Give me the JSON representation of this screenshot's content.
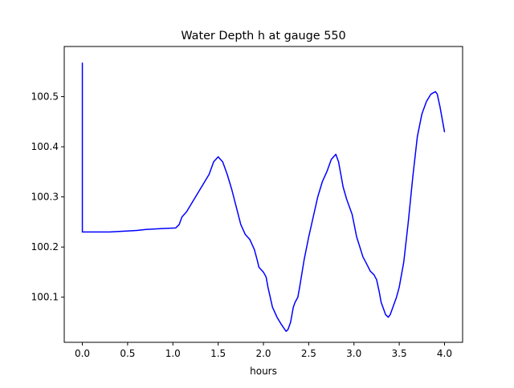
{
  "chart_data": {
    "type": "line",
    "title": "Water Depth h at gauge 550",
    "xlabel": "hours",
    "ylabel": "",
    "xlim": [
      -0.2,
      4.2
    ],
    "ylim": [
      100.01,
      100.6
    ],
    "xticks": [
      0.0,
      0.5,
      1.0,
      1.5,
      2.0,
      2.5,
      3.0,
      3.5,
      4.0
    ],
    "xtick_labels": [
      "0.0",
      "0.5",
      "1.0",
      "1.5",
      "2.0",
      "2.5",
      "3.0",
      "3.5",
      "4.0"
    ],
    "yticks": [
      100.1,
      100.2,
      100.3,
      100.4,
      100.5
    ],
    "ytick_labels": [
      "100.1",
      "100.2",
      "100.3",
      "100.4",
      "100.5"
    ],
    "grid": false,
    "line_color": "#0000ff",
    "series": [
      {
        "x": [
          0.0,
          0.0,
          0.005,
          0.3,
          0.6,
          0.7,
          0.9,
          1.03,
          1.07,
          1.1,
          1.15,
          1.2,
          1.25,
          1.3,
          1.35,
          1.4,
          1.45,
          1.5,
          1.55,
          1.6,
          1.65,
          1.7,
          1.75,
          1.8,
          1.85,
          1.9,
          1.93,
          1.95,
          2.0,
          2.03,
          2.05,
          2.1,
          2.15,
          2.2,
          2.25,
          2.27,
          2.3,
          2.33,
          2.35,
          2.38,
          2.4,
          2.45,
          2.5,
          2.55,
          2.6,
          2.65,
          2.7,
          2.75,
          2.8,
          2.83,
          2.88,
          2.92,
          2.98,
          3.03,
          3.1,
          3.13,
          3.18,
          3.22,
          3.25,
          3.28,
          3.3,
          3.35,
          3.38,
          3.4,
          3.43,
          3.47,
          3.5,
          3.55,
          3.6,
          3.65,
          3.7,
          3.75,
          3.8,
          3.85,
          3.9,
          3.92,
          3.95,
          4.0
        ],
        "y": [
          100.567,
          100.23,
          100.23,
          100.23,
          100.233,
          100.235,
          100.237,
          100.238,
          100.245,
          100.26,
          100.27,
          100.285,
          100.3,
          100.315,
          100.33,
          100.345,
          100.37,
          100.38,
          100.37,
          100.345,
          100.315,
          100.28,
          100.245,
          100.225,
          100.215,
          100.195,
          100.175,
          100.16,
          100.15,
          100.14,
          100.12,
          100.08,
          100.06,
          100.045,
          100.032,
          100.035,
          100.05,
          100.08,
          100.09,
          100.1,
          100.12,
          100.175,
          100.22,
          100.26,
          100.3,
          100.33,
          100.35,
          100.375,
          100.385,
          100.37,
          100.32,
          100.295,
          100.265,
          100.22,
          100.18,
          100.17,
          100.152,
          100.145,
          100.135,
          100.11,
          100.09,
          100.065,
          100.06,
          100.065,
          100.08,
          100.1,
          100.12,
          100.17,
          100.25,
          100.34,
          100.42,
          100.465,
          100.49,
          100.505,
          100.51,
          100.505,
          100.48,
          100.43
        ]
      }
    ]
  }
}
